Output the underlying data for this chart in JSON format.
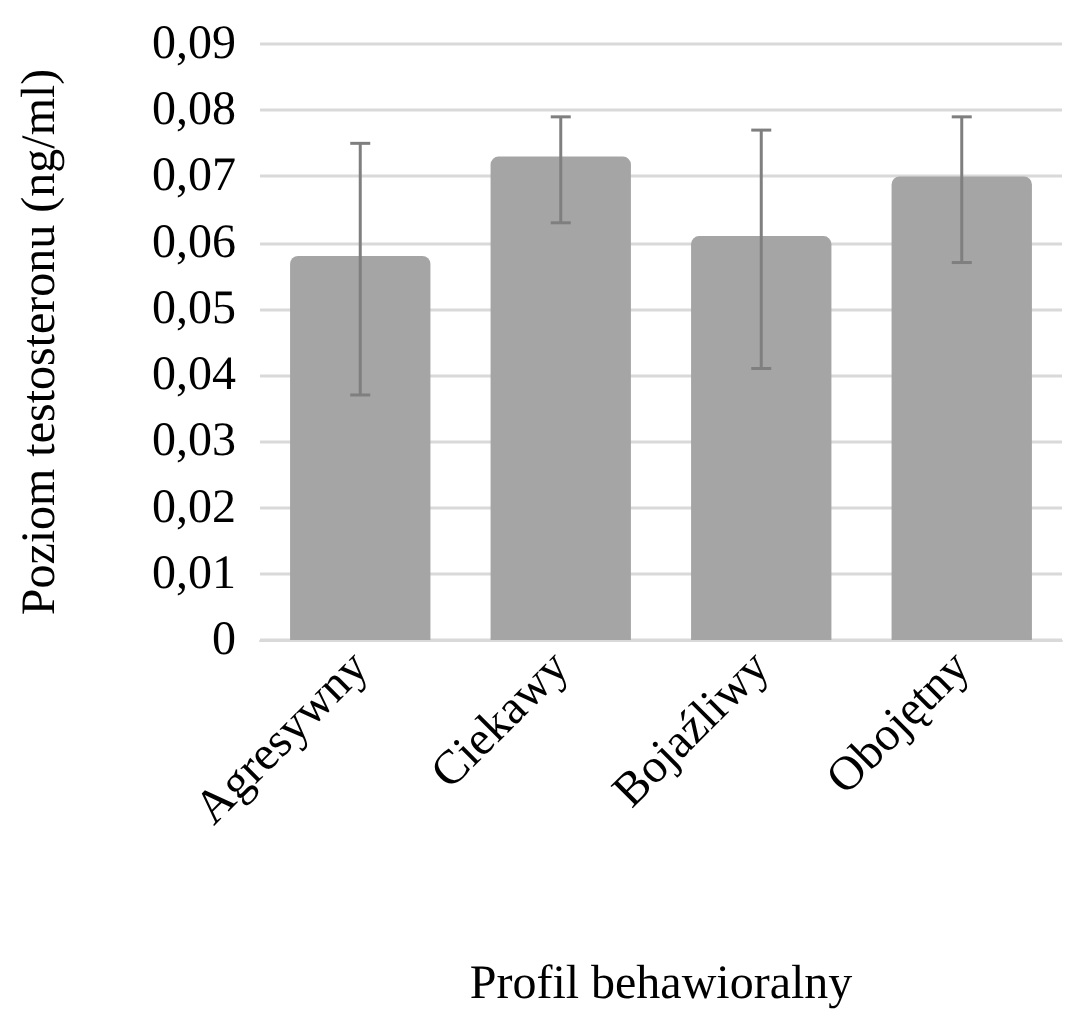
{
  "chart_data": {
    "type": "bar",
    "xlabel": "Profil behawioralny",
    "ylabel": "Poziom testosteronu (ng/ml)",
    "categories": [
      "Agresywny",
      "Ciekawy",
      "Bojaźliwy",
      "Obojętny"
    ],
    "values": [
      0.058,
      0.073,
      0.061,
      0.07
    ],
    "errors": [
      [
        0.037,
        0.075
      ],
      [
        0.063,
        0.079
      ],
      [
        0.041,
        0.077
      ],
      [
        0.057,
        0.079
      ]
    ],
    "color": "#a5a5a5",
    "ylim": [
      0,
      0.09
    ],
    "yticks": [
      {
        "value": 0,
        "label": "0"
      },
      {
        "value": 0.01,
        "label": "0,01"
      },
      {
        "value": 0.02,
        "label": "0,02"
      },
      {
        "value": 0.03,
        "label": "0,03"
      },
      {
        "value": 0.04,
        "label": "0,04"
      },
      {
        "value": 0.05,
        "label": "0,05"
      },
      {
        "value": 0.06,
        "label": "0,06"
      },
      {
        "value": 0.07,
        "label": "0,07"
      },
      {
        "value": 0.08,
        "label": "0,08"
      },
      {
        "value": 0.09,
        "label": "0,09"
      }
    ],
    "grid": "y"
  }
}
